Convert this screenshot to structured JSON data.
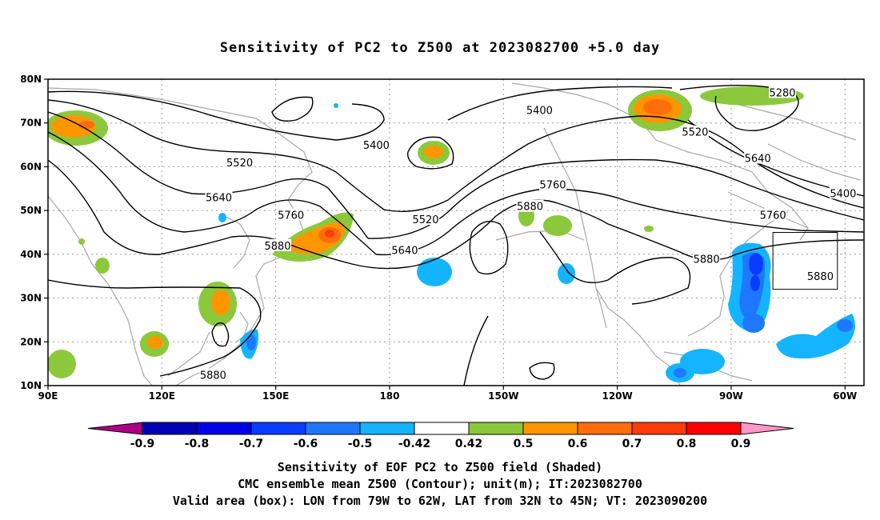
{
  "title": "Sensitivity of PC2 to Z500 at 2023082700 +5.0 day",
  "captions": [
    "Sensitivity of EOF PC2 to Z500 field (Shaded)",
    "CMC ensemble mean Z500 (Contour); unit(m); IT:2023082700",
    "Valid area (box): LON from 79W to 62W, LAT from 32N to 45N; VT: 2023090200"
  ],
  "map": {
    "lon_range": [
      90,
      305
    ],
    "lat_range": [
      10,
      80
    ],
    "lat_ticks": [
      {
        "lat": 80,
        "label": "80N"
      },
      {
        "lat": 70,
        "label": "70N"
      },
      {
        "lat": 60,
        "label": "60N"
      },
      {
        "lat": 50,
        "label": "50N"
      },
      {
        "lat": 40,
        "label": "40N"
      },
      {
        "lat": 30,
        "label": "30N"
      },
      {
        "lat": 20,
        "label": "20N"
      },
      {
        "lat": 10,
        "label": "10N"
      }
    ],
    "lon_ticks": [
      {
        "lon": 90,
        "label": "90E"
      },
      {
        "lon": 120,
        "label": "120E"
      },
      {
        "lon": 150,
        "label": "150E"
      },
      {
        "lon": 180,
        "label": "180"
      },
      {
        "lon": 210,
        "label": "150W"
      },
      {
        "lon": 240,
        "label": "120W"
      },
      {
        "lon": 270,
        "label": "90W"
      },
      {
        "lon": 300,
        "label": "60W"
      }
    ],
    "valid_box": {
      "lon": [
        281,
        298
      ],
      "lat": [
        32,
        45
      ]
    }
  },
  "contour_labels": [
    {
      "text": "5280",
      "lon": 283.5,
      "lat": 77
    },
    {
      "text": "5400",
      "lon": 219.5,
      "lat": 73
    },
    {
      "text": "5400",
      "lon": 176.5,
      "lat": 65
    },
    {
      "text": "5400",
      "lon": 299.5,
      "lat": 54
    },
    {
      "text": "5520",
      "lon": 260.5,
      "lat": 68
    },
    {
      "text": "5520",
      "lon": 140.5,
      "lat": 61
    },
    {
      "text": "5520",
      "lon": 189.5,
      "lat": 48
    },
    {
      "text": "5640",
      "lon": 277,
      "lat": 62
    },
    {
      "text": "5640",
      "lon": 135,
      "lat": 53
    },
    {
      "text": "5640",
      "lon": 184,
      "lat": 41
    },
    {
      "text": "5760",
      "lon": 223,
      "lat": 56
    },
    {
      "text": "5760",
      "lon": 154,
      "lat": 49
    },
    {
      "text": "5760",
      "lon": 281,
      "lat": 49
    },
    {
      "text": "5880",
      "lon": 217,
      "lat": 51
    },
    {
      "text": "5880",
      "lon": 150.5,
      "lat": 42
    },
    {
      "text": "5880",
      "lon": 263.5,
      "lat": 39
    },
    {
      "text": "5880",
      "lon": 293.5,
      "lat": 35
    },
    {
      "text": "5880",
      "lon": 133.5,
      "lat": 12.5
    }
  ],
  "colorbar": {
    "tick_labels": [
      "-0.9",
      "-0.8",
      "-0.7",
      "-0.6",
      "-0.5",
      "-0.42",
      "0.42",
      "0.5",
      "0.6",
      "0.7",
      "0.8",
      "0.9"
    ],
    "colors": [
      "#aa0088",
      "#0000b4",
      "#0000e6",
      "#0a3cff",
      "#1e78ff",
      "#14b4ff",
      "#ffffff",
      "#8cc83c",
      "#ff9600",
      "#ff6e0a",
      "#ff3c0a",
      "#ff0000",
      "#ff96c8"
    ]
  }
}
